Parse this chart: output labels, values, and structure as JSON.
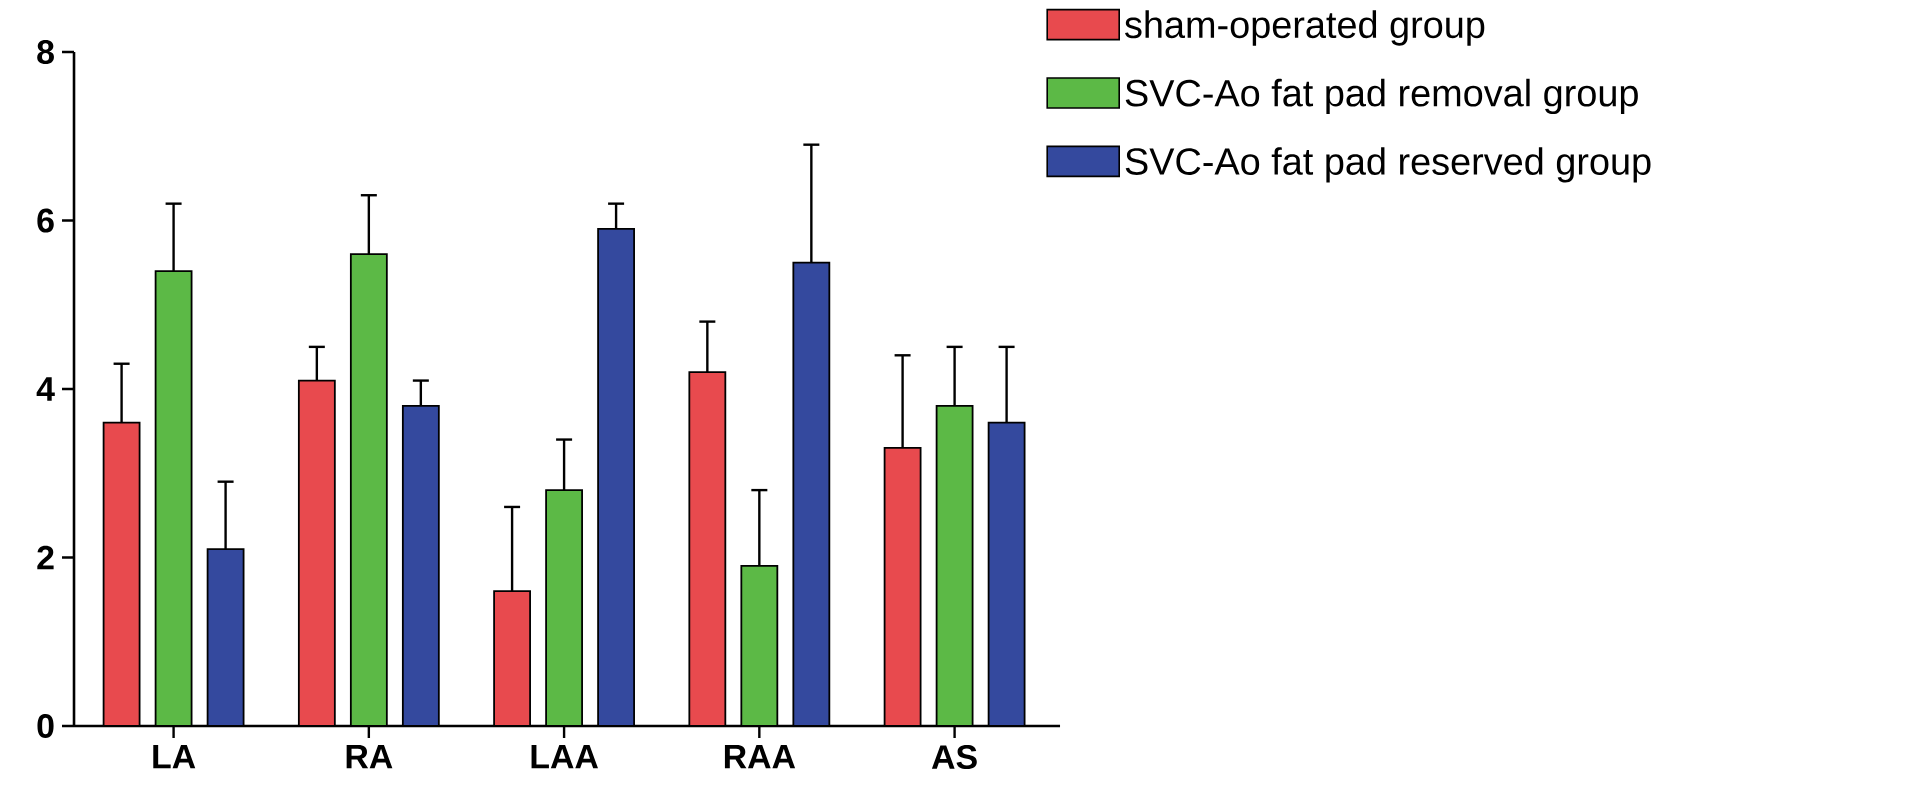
{
  "chart_data": {
    "type": "bar",
    "categories": [
      "LA",
      "RA",
      "LAA",
      "RAA",
      "AS"
    ],
    "series": [
      {
        "name": "sham-operated group",
        "color": "#e84a4e",
        "values": [
          3.6,
          4.1,
          1.6,
          4.2,
          3.3
        ],
        "errors": [
          0.7,
          0.4,
          1.0,
          0.6,
          1.1
        ]
      },
      {
        "name": "SVC-Ao fat pad removal group",
        "color": "#5cb946",
        "values": [
          5.4,
          5.6,
          2.8,
          1.9,
          3.8
        ],
        "errors": [
          0.8,
          0.7,
          0.6,
          0.9,
          0.7
        ]
      },
      {
        "name": "SVC-Ao fat pad reserved group",
        "color": "#34499e",
        "values": [
          2.1,
          3.8,
          5.9,
          5.5,
          3.6
        ],
        "errors": [
          0.8,
          0.3,
          0.3,
          1.4,
          0.9
        ]
      }
    ],
    "ylim": [
      0,
      8
    ],
    "yticks": [
      0,
      2,
      4,
      6,
      8
    ],
    "grid": false,
    "legend": "top right"
  }
}
